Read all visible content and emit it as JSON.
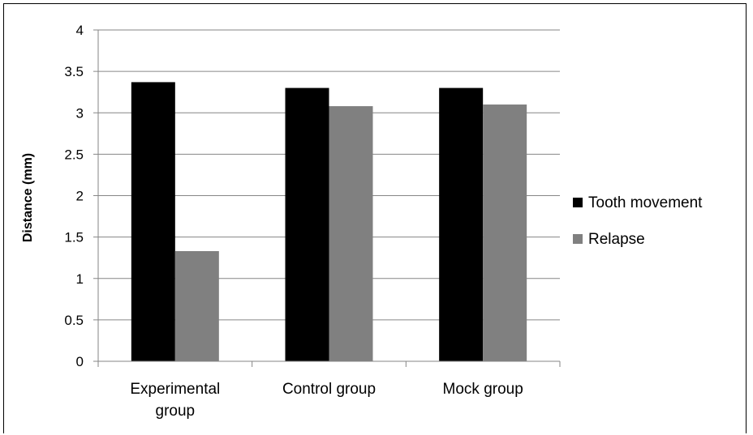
{
  "chart_data": {
    "type": "bar",
    "title": "",
    "xlabel": "",
    "ylabel": "Distance  (mm)",
    "categories": [
      [
        "Experimental",
        "group"
      ],
      [
        "Control group"
      ],
      [
        "Mock group"
      ]
    ],
    "series": [
      {
        "name": "Tooth movement",
        "color": "#000000",
        "values": [
          3.37,
          3.3,
          3.3
        ]
      },
      {
        "name": "Relapse",
        "color": "#808080",
        "values": [
          1.33,
          3.08,
          3.1
        ]
      }
    ],
    "ylim": [
      0,
      4
    ],
    "yticks": [
      "0",
      "0.5",
      "1",
      "1.5",
      "2",
      "2.5",
      "3",
      "3.5",
      "4"
    ],
    "grid": true,
    "legend_position": "right"
  }
}
